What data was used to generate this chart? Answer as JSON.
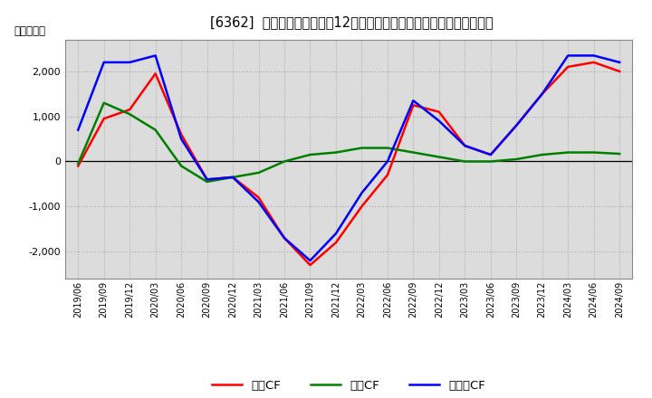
{
  "title": "[6362]  キャッシュフローの12か月移動合計の対前年同期増減額の推移",
  "ylabel": "（百万円）",
  "background_color": "#ffffff",
  "x_labels": [
    "2019/06",
    "2019/09",
    "2019/12",
    "2020/03",
    "2020/06",
    "2020/09",
    "2020/12",
    "2021/03",
    "2021/06",
    "2021/09",
    "2021/12",
    "2022/03",
    "2022/06",
    "2022/09",
    "2022/12",
    "2023/03",
    "2023/06",
    "2023/09",
    "2023/12",
    "2024/03",
    "2024/06",
    "2024/09"
  ],
  "operating_cf": [
    -100,
    950,
    1150,
    1950,
    600,
    -400,
    -350,
    -800,
    -1700,
    -2300,
    -1800,
    -1000,
    -300,
    1250,
    1100,
    350,
    150,
    800,
    1500,
    2100,
    2200,
    2000
  ],
  "investing_cf": [
    -50,
    1300,
    1050,
    700,
    -100,
    -450,
    -350,
    -250,
    0,
    150,
    200,
    300,
    300,
    200,
    100,
    0,
    0,
    50,
    150,
    200,
    200,
    170
  ],
  "free_cf": [
    700,
    2200,
    2200,
    2350,
    500,
    -400,
    -350,
    -900,
    -1700,
    -2200,
    -1600,
    -700,
    0,
    1350,
    900,
    350,
    150,
    800,
    1500,
    2350,
    2350,
    2200
  ],
  "ylim": [
    -2600,
    2700
  ],
  "yticks": [
    -2000,
    -1000,
    0,
    1000,
    2000
  ],
  "line_colors": {
    "operating": "#ff0000",
    "investing": "#008000",
    "free": "#0000ff"
  },
  "legend_labels": {
    "operating": "営業CF",
    "investing": "投賃CF",
    "free": "フリーCF"
  }
}
